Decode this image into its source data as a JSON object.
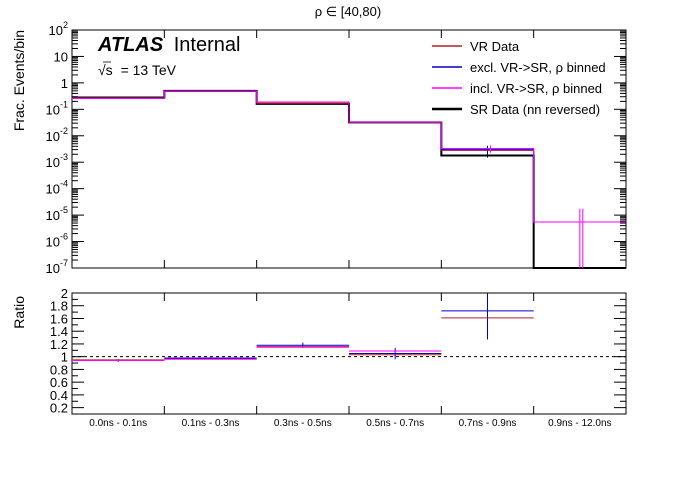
{
  "chart_data": [
    {
      "type": "histogram",
      "title": "ρ ∈ [40,80)",
      "ylabel": "Frac. Events/bin",
      "yscale": "log",
      "ylim": [
        1e-07,
        100
      ],
      "y_ticks": [
        {
          "value": 1e-07,
          "base": "10",
          "exp": "-7"
        },
        {
          "value": 1e-06,
          "base": "10",
          "exp": "-6"
        },
        {
          "value": 1e-05,
          "base": "10",
          "exp": "-5"
        },
        {
          "value": 0.0001,
          "base": "10",
          "exp": "-4"
        },
        {
          "value": 0.001,
          "base": "10",
          "exp": "-3"
        },
        {
          "value": 0.01,
          "base": "10",
          "exp": "-2"
        },
        {
          "value": 0.1,
          "base": "10",
          "exp": "-1"
        },
        {
          "value": 1,
          "base": "1",
          "exp": ""
        },
        {
          "value": 10,
          "base": "10",
          "exp": ""
        },
        {
          "value": 100,
          "base": "10",
          "exp": "2"
        }
      ],
      "categories": [
        "0.0ns - 0.1ns",
        "0.1ns - 0.3ns",
        "0.3ns - 0.5ns",
        "0.5ns - 0.7ns",
        "0.7ns - 0.9ns",
        "0.9ns - 12.0ns"
      ],
      "atlas_label": {
        "bold": "ATLAS",
        "normal": "Internal"
      },
      "energy_label": {
        "sqrt": "√s",
        "text": "= 13 TeV"
      },
      "legend_position": "top-right",
      "series": [
        {
          "name": "VR Data",
          "color": "#b22222",
          "width": 1,
          "values": [
            0.27,
            0.5,
            0.17,
            0.032,
            0.0028,
            5.5e-06
          ],
          "errors": [
            0,
            0,
            0,
            0,
            0.0004,
            0
          ]
        },
        {
          "name": "excl. VR->SR, ρ binned",
          "color": "#0000cc",
          "width": 1,
          "values": [
            0.26,
            0.49,
            0.19,
            0.033,
            0.003,
            5.5e-06
          ],
          "errors": [
            0,
            0,
            0,
            0,
            0.0012,
            0
          ]
        },
        {
          "name": "incl. VR->SR, ρ binned",
          "color": "#ff00ff",
          "width": 1,
          "values": [
            0.26,
            0.49,
            0.19,
            0.033,
            0.0033,
            5.5e-06
          ],
          "errors": [
            0,
            0,
            0.01,
            0,
            0.001,
            1.2e-05
          ]
        },
        {
          "name": "SR Data (nn reversed)",
          "color": "#000000",
          "width": 2,
          "values": [
            0.28,
            0.5,
            0.16,
            0.032,
            0.0018,
            0
          ],
          "errors": [
            0,
            0,
            0,
            0,
            0.0003,
            0
          ]
        }
      ]
    },
    {
      "type": "ratio",
      "ylabel": "Ratio",
      "ylim": [
        0.1,
        2.0
      ],
      "y_ticks": [
        "0.2",
        "0.4",
        "0.6",
        "0.8",
        "1",
        "1.2",
        "1.4",
        "1.6",
        "1.8",
        "2"
      ],
      "reference_line": 1.0,
      "series": [
        {
          "name": "VR Data",
          "color": "#b22222",
          "values": [
            0.95,
            0.97,
            1.15,
            1.03,
            1.61,
            null
          ],
          "errors": [
            0,
            0,
            0,
            0,
            0.33,
            0
          ]
        },
        {
          "name": "excl. VR->SR, ρ binned",
          "color": "#0000cc",
          "values": [
            0.94,
            0.98,
            1.18,
            1.05,
            1.72,
            null
          ],
          "errors": [
            0.02,
            0.01,
            0.04,
            0.09,
            0.45,
            0
          ]
        },
        {
          "name": "incl. VR->SR, ρ binned",
          "color": "#ff00ff",
          "values": [
            0.94,
            0.96,
            1.16,
            1.09,
            null,
            null
          ],
          "errors": [
            0,
            0,
            0,
            0,
            0,
            0
          ]
        }
      ]
    }
  ]
}
